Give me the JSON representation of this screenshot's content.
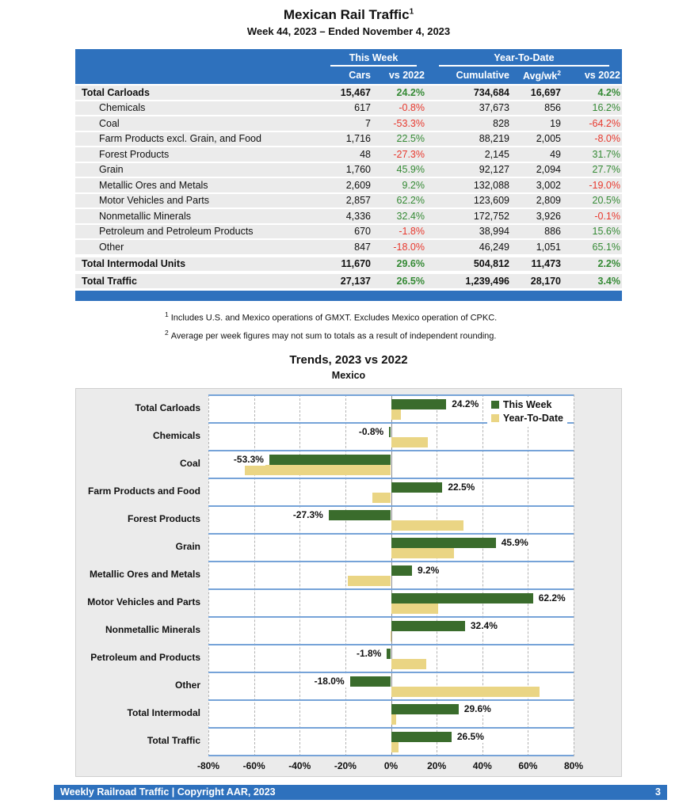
{
  "page": {
    "title": "Mexican Rail Traffic",
    "title_sup": "1",
    "subtitle": "Week 44, 2023 – Ended November 4, 2023"
  },
  "colors": {
    "header_blue": "#2E71BD",
    "positive_green": "#358A35",
    "negative_red": "#E8392E",
    "row_gray": "#EBEBEB",
    "band_line_blue": "#76A3D8",
    "bar_green": "#3A6C2C",
    "bar_yellow": "#EAD584"
  },
  "table": {
    "group_this_week": "This Week",
    "group_ytd": "Year-To-Date",
    "col_cars": "Cars",
    "col_vs_week": "vs 2022",
    "col_cumulative": "Cumulative",
    "col_avg": "Avg/wk",
    "col_avg_sup": "2",
    "col_vs_ytd": "vs 2022",
    "rows": [
      {
        "label": "Total Carloads",
        "total": true,
        "cars": "15,467",
        "vs_week": "24.2%",
        "cumulative": "734,684",
        "avg_wk": "16,697",
        "vs_ytd": "4.2%"
      },
      {
        "label": "Chemicals",
        "total": false,
        "cars": "617",
        "vs_week": "-0.8%",
        "cumulative": "37,673",
        "avg_wk": "856",
        "vs_ytd": "16.2%"
      },
      {
        "label": "Coal",
        "total": false,
        "cars": "7",
        "vs_week": "-53.3%",
        "cumulative": "828",
        "avg_wk": "19",
        "vs_ytd": "-64.2%"
      },
      {
        "label": "Farm Products excl. Grain, and Food",
        "total": false,
        "cars": "1,716",
        "vs_week": "22.5%",
        "cumulative": "88,219",
        "avg_wk": "2,005",
        "vs_ytd": "-8.0%"
      },
      {
        "label": "Forest Products",
        "total": false,
        "cars": "48",
        "vs_week": "-27.3%",
        "cumulative": "2,145",
        "avg_wk": "49",
        "vs_ytd": "31.7%"
      },
      {
        "label": "Grain",
        "total": false,
        "cars": "1,760",
        "vs_week": "45.9%",
        "cumulative": "92,127",
        "avg_wk": "2,094",
        "vs_ytd": "27.7%"
      },
      {
        "label": "Metallic Ores and Metals",
        "total": false,
        "cars": "2,609",
        "vs_week": "9.2%",
        "cumulative": "132,088",
        "avg_wk": "3,002",
        "vs_ytd": "-19.0%"
      },
      {
        "label": "Motor Vehicles and Parts",
        "total": false,
        "cars": "2,857",
        "vs_week": "62.2%",
        "cumulative": "123,609",
        "avg_wk": "2,809",
        "vs_ytd": "20.5%"
      },
      {
        "label": "Nonmetallic Minerals",
        "total": false,
        "cars": "4,336",
        "vs_week": "32.4%",
        "cumulative": "172,752",
        "avg_wk": "3,926",
        "vs_ytd": "-0.1%"
      },
      {
        "label": "Petroleum and Petroleum Products",
        "total": false,
        "cars": "670",
        "vs_week": "-1.8%",
        "cumulative": "38,994",
        "avg_wk": "886",
        "vs_ytd": "15.6%"
      },
      {
        "label": "Other",
        "total": false,
        "cars": "847",
        "vs_week": "-18.0%",
        "cumulative": "46,249",
        "avg_wk": "1,051",
        "vs_ytd": "65.1%"
      },
      {
        "label": "Total Intermodal Units",
        "total": true,
        "cars": "11,670",
        "vs_week": "29.6%",
        "cumulative": "504,812",
        "avg_wk": "11,473",
        "vs_ytd": "2.2%"
      },
      {
        "label": "Total Traffic",
        "total": true,
        "cars": "27,137",
        "vs_week": "26.5%",
        "cumulative": "1,239,496",
        "avg_wk": "28,170",
        "vs_ytd": "3.4%"
      }
    ]
  },
  "footnotes": [
    {
      "sup": "1",
      "text": "Includes U.S. and Mexico operations of GMXT. Excludes Mexico operation of CPKC."
    },
    {
      "sup": "2",
      "text": "Average per week figures may not sum to totals as a result of independent rounding."
    }
  ],
  "chart_data": {
    "type": "bar",
    "orientation": "horizontal",
    "title": "Trends, 2023 vs 2022",
    "subtitle": "Mexico",
    "categories": [
      "Total Carloads",
      "Chemicals",
      "Coal",
      "Farm Products and Food",
      "Forest Products",
      "Grain",
      "Metallic Ores and Metals",
      "Motor Vehicles and Parts",
      "Nonmetallic Minerals",
      "Petroleum and Products",
      "Other",
      "Total Intermodal",
      "Total Traffic"
    ],
    "series": [
      {
        "name": "This Week",
        "color": "#3A6C2C",
        "values": [
          24.2,
          -0.8,
          -53.3,
          22.5,
          -27.3,
          45.9,
          9.2,
          62.2,
          32.4,
          -1.8,
          -18.0,
          29.6,
          26.5
        ]
      },
      {
        "name": "Year-To-Date",
        "color": "#EAD584",
        "values": [
          4.2,
          16.2,
          -64.2,
          -8.0,
          31.7,
          27.7,
          -19.0,
          20.5,
          -0.1,
          15.6,
          65.1,
          2.2,
          3.4
        ]
      }
    ],
    "bar_labels": [
      "24.2%",
      "-0.8%",
      "-53.3%",
      "22.5%",
      "-27.3%",
      "45.9%",
      "9.2%",
      "62.2%",
      "32.4%",
      "-1.8%",
      "-18.0%",
      "29.6%",
      "26.5%"
    ],
    "xlim": [
      -80,
      80
    ],
    "x_ticks": [
      "-80%",
      "-60%",
      "-40%",
      "-20%",
      "0%",
      "20%",
      "40%",
      "60%",
      "80%"
    ],
    "grid": "dashed-vertical",
    "legend_position": "top-right",
    "data_labels": "This Week series only"
  },
  "footer": {
    "left": "Weekly Railroad Traffic | Copyright AAR, 2023",
    "page": "3"
  }
}
